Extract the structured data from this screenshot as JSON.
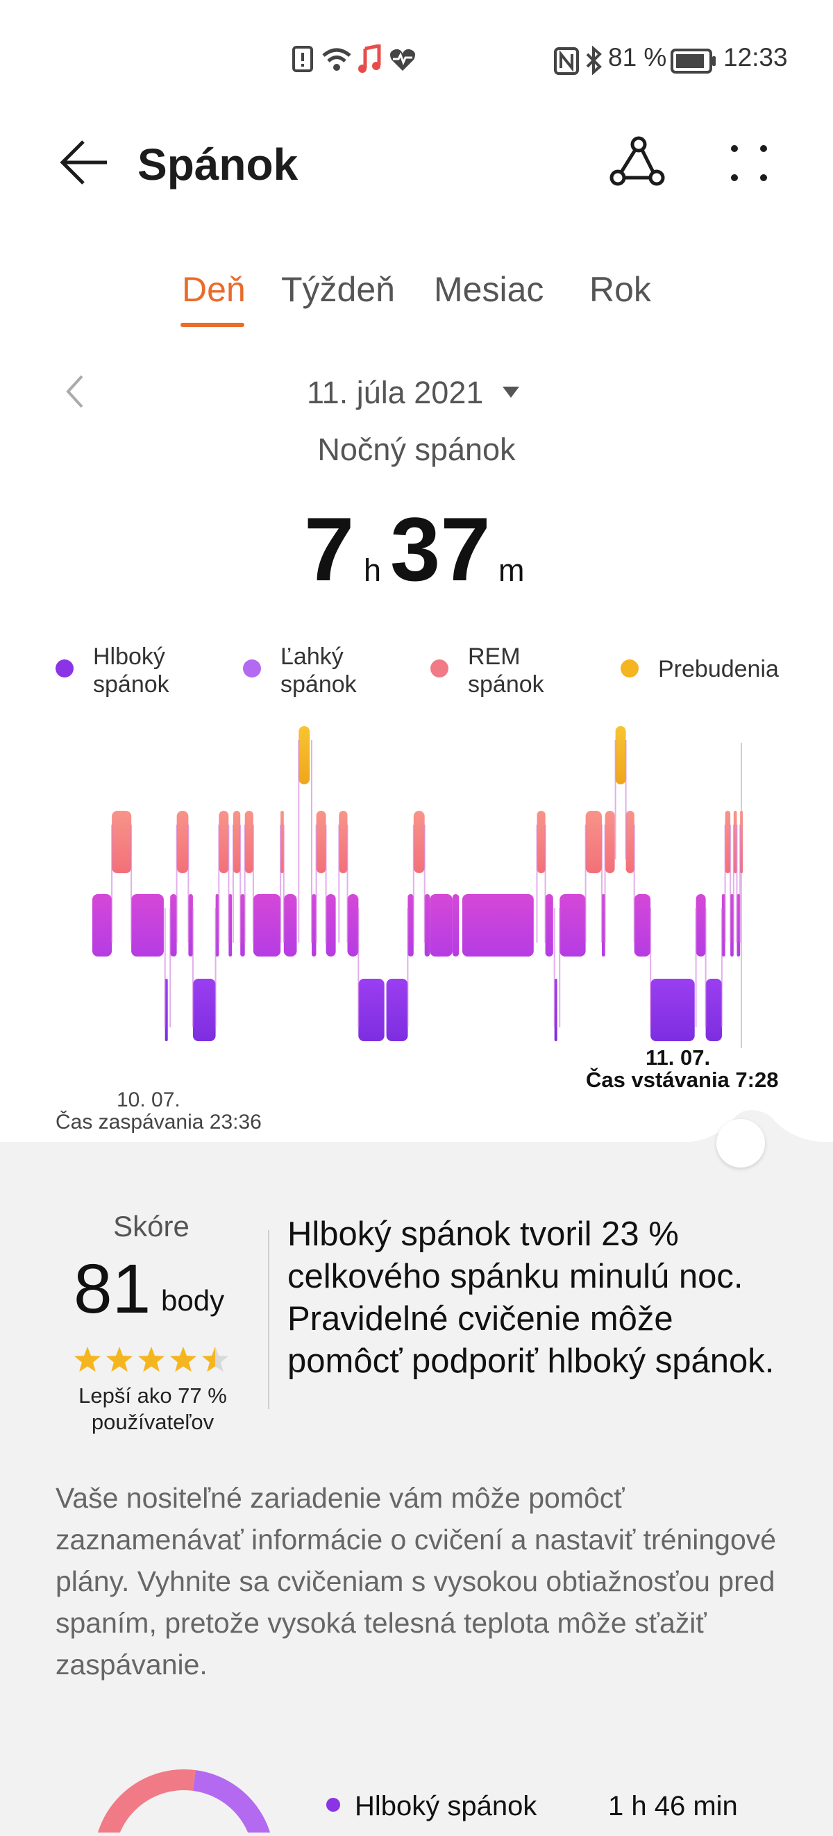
{
  "status_bar": {
    "battery_percent": "81 %",
    "time": "12:33",
    "left_icons": [
      "alert-icon",
      "wifi-icon",
      "music-icon",
      "heart-rate-icon"
    ],
    "right_icons": [
      "nfc-icon",
      "bluetooth-icon",
      "battery-icon"
    ]
  },
  "header": {
    "title": "Spánok",
    "actions": [
      "share-icon",
      "more-icon"
    ]
  },
  "tabs": [
    {
      "label": "Deň",
      "active": true
    },
    {
      "label": "Týždeň",
      "active": false
    },
    {
      "label": "Mesiac",
      "active": false
    },
    {
      "label": "Rok",
      "active": false
    }
  ],
  "date_selector": {
    "date": "11. júla 2021"
  },
  "summary": {
    "subtitle": "Nočný spánok",
    "hours": "7",
    "hours_unit": "h",
    "minutes": "37",
    "minutes_unit": "m"
  },
  "legend": [
    {
      "line1": "Hlboký",
      "line2": "spánok",
      "color": "#8a34e6"
    },
    {
      "line1": "Ľahký",
      "line2": "spánok",
      "color": "#b36af0"
    },
    {
      "line1": "REM",
      "line2": "spánok",
      "color": "#f07b86"
    },
    {
      "line1": "Prebudenia",
      "line2": "",
      "color": "#f5b521"
    }
  ],
  "chart_data": {
    "type": "sleep-stage-timeline",
    "start_date": "10. 07.",
    "start_label": "Čas zaspávania 23:36",
    "end_date": "11. 07.",
    "end_label": "Čas vstávania 7:28",
    "stage_colors": {
      "deep": "#8a34e6",
      "light": "#c43fd6",
      "rem": "#f58a80",
      "awake": "#f5b521"
    },
    "segments": [
      [
        "light",
        0.0,
        0.03
      ],
      [
        "rem",
        0.03,
        0.06
      ],
      [
        "light",
        0.06,
        0.11
      ],
      [
        "deep",
        0.112,
        0.116
      ],
      [
        "light",
        0.12,
        0.13
      ],
      [
        "rem",
        0.13,
        0.148
      ],
      [
        "light",
        0.148,
        0.155
      ],
      [
        "deep",
        0.155,
        0.19
      ],
      [
        "light",
        0.19,
        0.195
      ],
      [
        "rem",
        0.195,
        0.21
      ],
      [
        "light",
        0.21,
        0.215
      ],
      [
        "rem",
        0.217,
        0.228
      ],
      [
        "light",
        0.228,
        0.235
      ],
      [
        "rem",
        0.235,
        0.248
      ],
      [
        "light",
        0.248,
        0.29
      ],
      [
        "rem",
        0.29,
        0.295
      ],
      [
        "light",
        0.295,
        0.315
      ],
      [
        "awake",
        0.318,
        0.335
      ],
      [
        "light",
        0.338,
        0.345
      ],
      [
        "rem",
        0.345,
        0.36
      ],
      [
        "light",
        0.36,
        0.375
      ],
      [
        "rem",
        0.38,
        0.393
      ],
      [
        "light",
        0.393,
        0.41
      ],
      [
        "deep",
        0.41,
        0.45
      ],
      [
        "deep",
        0.453,
        0.486
      ],
      [
        "light",
        0.486,
        0.495
      ],
      [
        "rem",
        0.495,
        0.512
      ],
      [
        "light",
        0.512,
        0.52
      ],
      [
        "light",
        0.52,
        0.555
      ],
      [
        "light",
        0.555,
        0.565
      ],
      [
        "light",
        0.57,
        0.68
      ],
      [
        "rem",
        0.685,
        0.698
      ],
      [
        "light",
        0.698,
        0.71
      ],
      [
        "deep",
        0.712,
        0.716
      ],
      [
        "light",
        0.72,
        0.76
      ],
      [
        "rem",
        0.76,
        0.785
      ],
      [
        "light",
        0.785,
        0.79
      ],
      [
        "rem",
        0.79,
        0.805
      ],
      [
        "awake",
        0.806,
        0.822
      ],
      [
        "rem",
        0.822,
        0.835
      ],
      [
        "light",
        0.835,
        0.86
      ],
      [
        "deep",
        0.86,
        0.928
      ],
      [
        "light",
        0.93,
        0.945
      ],
      [
        "deep",
        0.945,
        0.97
      ],
      [
        "light",
        0.97,
        0.975
      ],
      [
        "rem",
        0.975,
        0.983
      ],
      [
        "light",
        0.983,
        0.988
      ],
      [
        "rem",
        0.988,
        0.993
      ],
      [
        "light",
        0.993,
        0.998
      ],
      [
        "rem",
        0.998,
        1.0
      ]
    ]
  },
  "score": {
    "label": "Skóre",
    "value": "81",
    "unit": "body",
    "stars": 4.5,
    "better_than": "Lepší ako 77 % používateľov"
  },
  "insight": "Hlboký spánok tvoril 23 % celkového spánku minulú noc. Pravidelné cvičenie môže pomôcť podporiť hlboký spánok.",
  "advice": "Vaše nositeľné zariadenie vám môže pomôcť zaznamenávať informácie o cvičení a nastaviť tréningové plány. Vyhnite sa cvičeniam s vysokou obtiažnosťou pred spaním, pretože vysoká telesná teplota môže sťažiť zaspávanie.",
  "breakdown": {
    "deep_label": "Hlboký spánok",
    "deep_value": "1 h 46 min",
    "ring_colors": [
      "#f07b86",
      "#b36af0"
    ]
  }
}
